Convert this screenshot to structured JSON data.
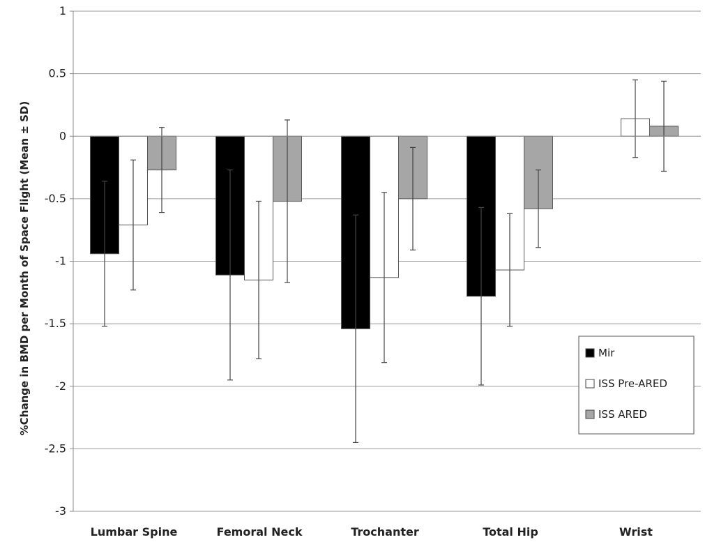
{
  "chart_data": {
    "type": "bar",
    "title": "",
    "xlabel": "",
    "ylabel": "%Change in BMD per Month of Space Flight (Mean ± SD)",
    "ylim": [
      -3,
      1
    ],
    "yticks": [
      "1",
      "0.5",
      "0",
      "-0.5",
      "-1",
      "-1.5",
      "-2",
      "-2.5",
      "-3"
    ],
    "ytick_values": [
      1,
      0.5,
      0,
      -0.5,
      -1,
      -1.5,
      -2,
      -2.5,
      -3
    ],
    "grid": true,
    "legend_position": "bottom-right",
    "categories": [
      "Lumbar Spine",
      "Femoral Neck",
      "Trochanter",
      "Total Hip",
      "Wrist"
    ],
    "series": [
      {
        "name": "Mir",
        "color": "#000000",
        "values": [
          -0.94,
          -1.11,
          -1.54,
          -1.28,
          null
        ],
        "sd": [
          0.58,
          0.84,
          0.91,
          0.71,
          null
        ]
      },
      {
        "name": "ISS Pre-ARED",
        "color": "#ffffff",
        "values": [
          -0.71,
          -1.15,
          -1.13,
          -1.07,
          0.14
        ],
        "sd": [
          0.52,
          0.63,
          0.68,
          0.45,
          0.31
        ]
      },
      {
        "name": "ISS ARED",
        "color": "#a6a6a6",
        "values": [
          -0.27,
          -0.52,
          -0.5,
          -0.58,
          0.08
        ],
        "sd": [
          0.34,
          0.65,
          0.41,
          0.31,
          0.36
        ]
      }
    ]
  }
}
